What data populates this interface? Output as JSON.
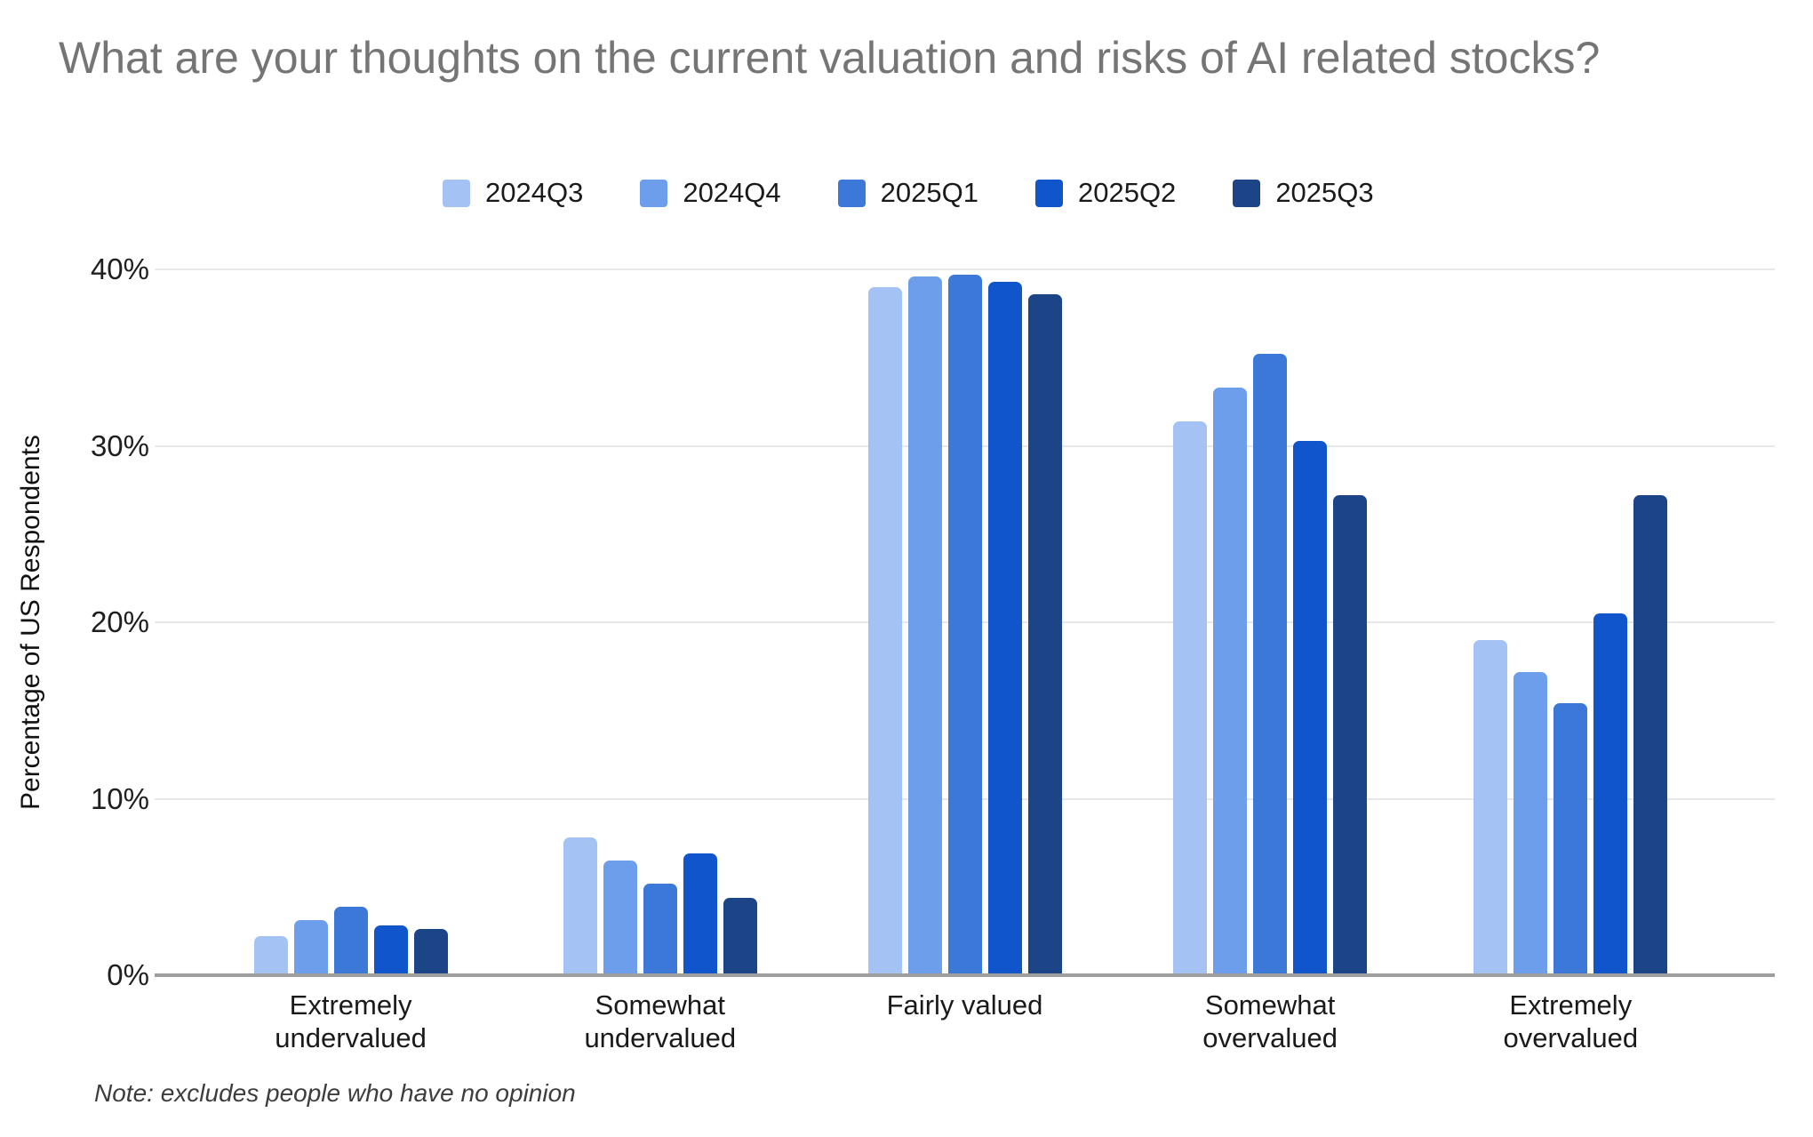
{
  "chart_data": {
    "type": "bar",
    "title": "What are your thoughts on the current valuation and risks of AI related stocks?",
    "ylabel": "Percentage of US Respondents",
    "xlabel": "",
    "note": "Note: excludes people who have no opinion",
    "categories": [
      "Extremely\nundervalued",
      "Somewhat\nundervalued",
      "Fairly valued",
      "Somewhat\novervalued",
      "Extremely overvalued"
    ],
    "series": [
      {
        "name": "2024Q3",
        "color": "#a4c2f4",
        "values": [
          2.2,
          7.8,
          39.0,
          31.4,
          19.0
        ]
      },
      {
        "name": "2024Q4",
        "color": "#6d9eeb",
        "values": [
          3.1,
          6.5,
          39.6,
          33.3,
          17.2
        ]
      },
      {
        "name": "2025Q1",
        "color": "#3c78d8",
        "values": [
          3.9,
          5.2,
          39.7,
          35.2,
          15.4
        ]
      },
      {
        "name": "2025Q2",
        "color": "#1155cc",
        "values": [
          2.8,
          6.9,
          39.3,
          30.3,
          20.5
        ]
      },
      {
        "name": "2025Q3",
        "color": "#1c4587",
        "values": [
          2.6,
          4.4,
          38.6,
          27.2,
          27.2
        ]
      }
    ],
    "ylim": [
      0,
      40
    ],
    "yticks": [
      {
        "value": 0,
        "label": "0%"
      },
      {
        "value": 10,
        "label": "10%"
      },
      {
        "value": 20,
        "label": "20%"
      },
      {
        "value": 30,
        "label": "30%"
      },
      {
        "value": 40,
        "label": "40%"
      }
    ],
    "grid": true,
    "legend_position": "top"
  },
  "colors": {
    "title_text": "#757575",
    "axis_text": "#1f1f1f",
    "gridline": "#e8e8e8",
    "baseline": "#9e9e9e",
    "background": "#ffffff"
  }
}
